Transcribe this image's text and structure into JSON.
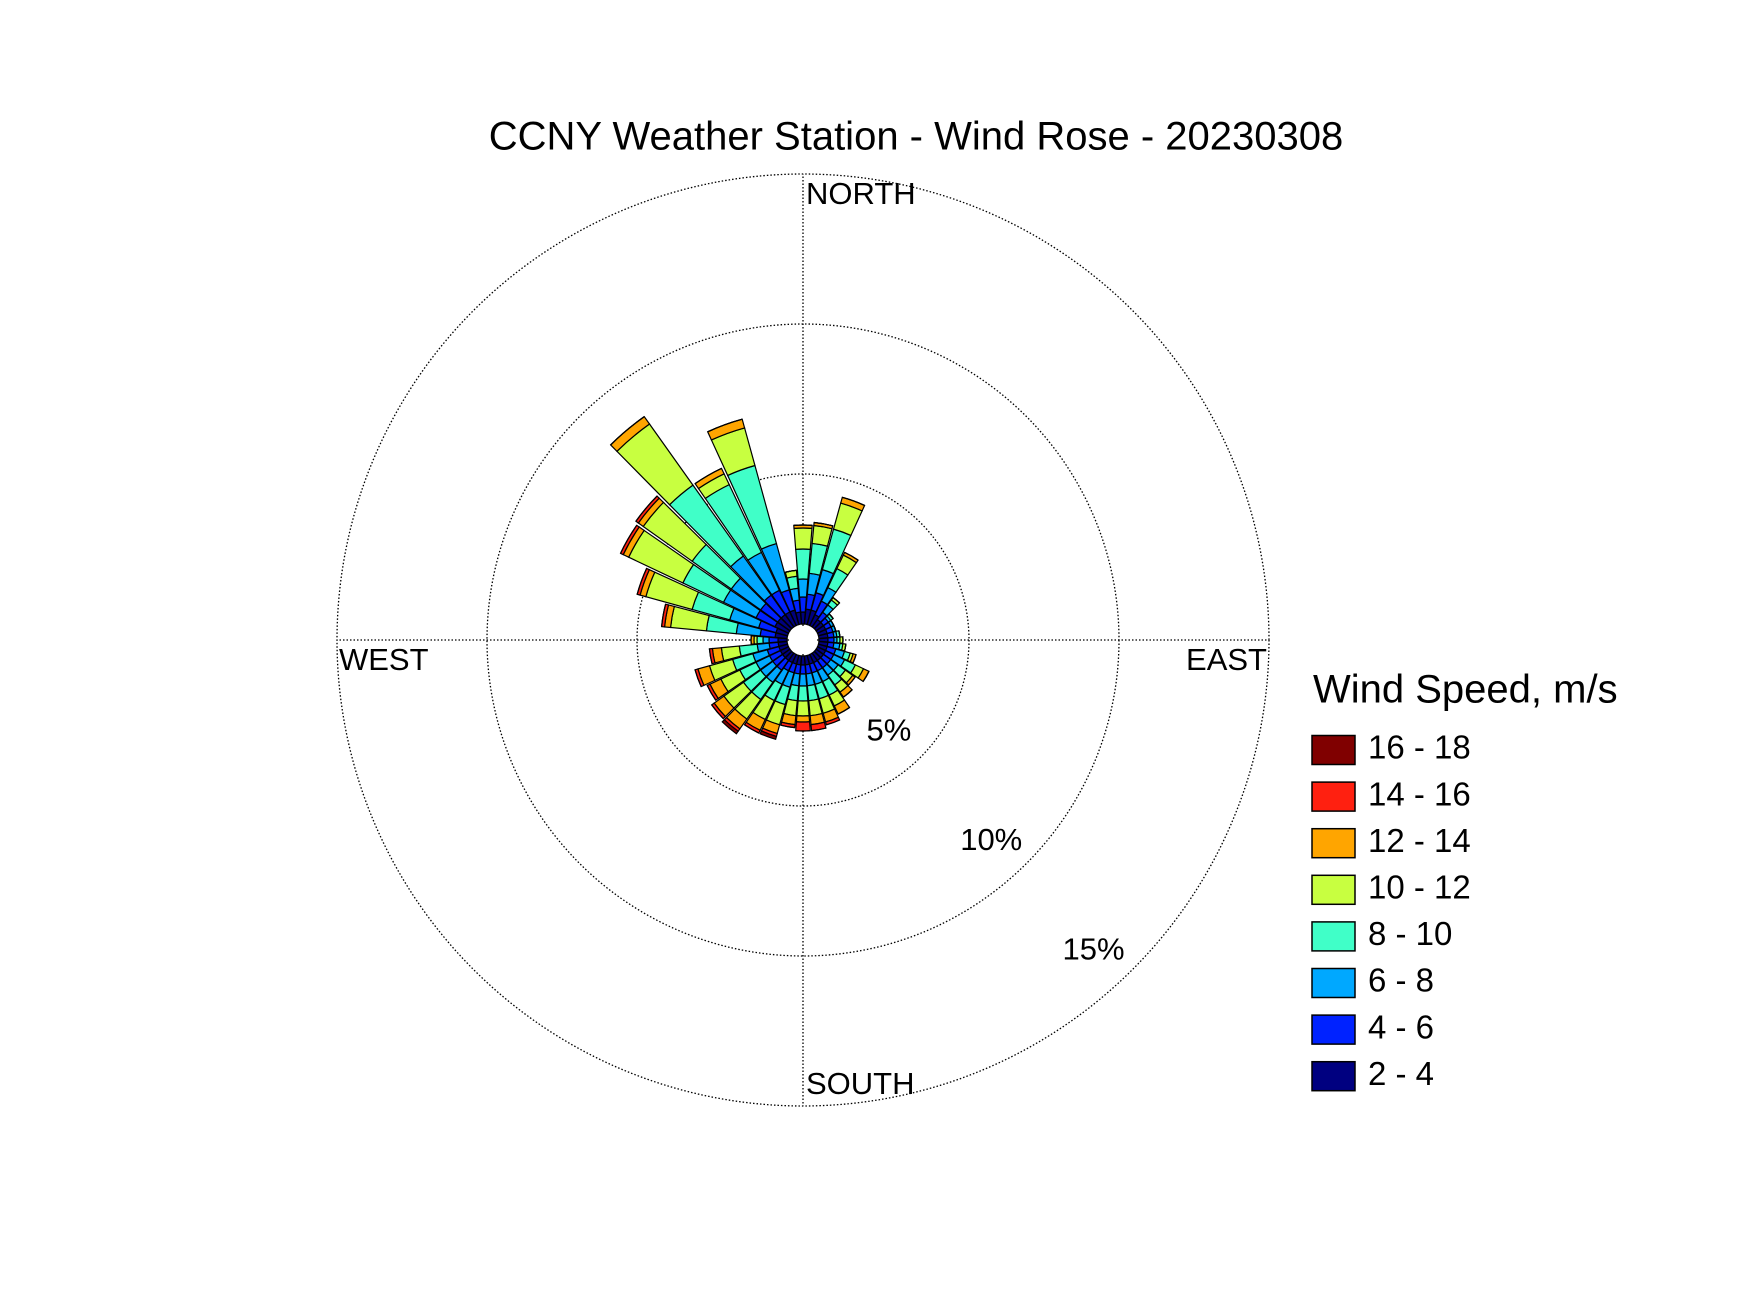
{
  "chart_data": {
    "type": "windrose",
    "title": "CCNY Weather Station - Wind Rose - 20230308",
    "legend_title": "Wind Speed, m/s",
    "x": [
      0,
      10,
      20,
      30,
      40,
      50,
      60,
      70,
      80,
      90,
      100,
      110,
      120,
      130,
      140,
      150,
      160,
      170,
      180,
      190,
      200,
      210,
      220,
      230,
      240,
      250,
      260,
      270,
      280,
      290,
      300,
      310,
      320,
      330,
      340,
      350
    ],
    "xlim": [
      0,
      360
    ],
    "xticks": [
      {
        "value": 0,
        "label": "NORTH"
      },
      {
        "value": 90,
        "label": "EAST"
      },
      {
        "value": 180,
        "label": "SOUTH"
      },
      {
        "value": 270,
        "label": "WEST"
      }
    ],
    "ylim": [
      0,
      15
    ],
    "yticks": [
      {
        "value": 5,
        "label": "5%"
      },
      {
        "value": 10,
        "label": "10%"
      },
      {
        "value": 15,
        "label": "15%"
      }
    ],
    "grid": true,
    "legend_position": "right",
    "series": [
      {
        "name": "2 - 4",
        "color": "#000080",
        "values": [
          0.4,
          0.5,
          0.5,
          0.4,
          0.3,
          0.3,
          0.3,
          0.3,
          0.3,
          0.3,
          0.3,
          0.3,
          0.3,
          0.3,
          0.3,
          0.3,
          0.3,
          0.3,
          0.3,
          0.3,
          0.3,
          0.3,
          0.3,
          0.3,
          0.3,
          0.3,
          0.3,
          0.3,
          0.4,
          0.4,
          0.5,
          0.5,
          0.5,
          0.5,
          0.5,
          0.4
        ]
      },
      {
        "name": "4 - 6",
        "color": "#0022ff",
        "values": [
          0.5,
          0.5,
          0.6,
          0.5,
          0.3,
          0.2,
          0.2,
          0.2,
          0.2,
          0.2,
          0.2,
          0.3,
          0.3,
          0.3,
          0.3,
          0.3,
          0.3,
          0.3,
          0.3,
          0.3,
          0.3,
          0.3,
          0.4,
          0.4,
          0.4,
          0.4,
          0.3,
          0.3,
          0.5,
          0.6,
          0.7,
          0.7,
          0.8,
          0.8,
          0.7,
          0.4
        ]
      },
      {
        "name": "6 - 8",
        "color": "#00a8ff",
        "values": [
          0.6,
          0.7,
          0.8,
          0.5,
          0.3,
          0.1,
          0.1,
          0.1,
          0.1,
          0.1,
          0.2,
          0.3,
          0.4,
          0.3,
          0.3,
          0.4,
          0.4,
          0.4,
          0.4,
          0.4,
          0.5,
          0.5,
          0.5,
          0.5,
          0.5,
          0.5,
          0.4,
          0.2,
          0.8,
          1.0,
          1.2,
          1.2,
          1.6,
          1.4,
          1.6,
          0.4
        ]
      },
      {
        "name": "8 - 10",
        "color": "#40ffc8",
        "values": [
          1.0,
          1.0,
          1.4,
          0.7,
          0.2,
          0.1,
          0,
          0,
          0.1,
          0.1,
          0.1,
          0.2,
          0.4,
          0.3,
          0.4,
          0.5,
          0.5,
          0.5,
          0.5,
          0.5,
          0.6,
          0.6,
          0.7,
          0.7,
          0.6,
          0.7,
          0.6,
          0.2,
          1.0,
          1.3,
          1.5,
          1.6,
          2.9,
          2.5,
          2.7,
          0.4
        ]
      },
      {
        "name": "10 - 12",
        "color": "#c8ff40",
        "values": [
          0.7,
          0.6,
          0.9,
          0.5,
          0.1,
          0,
          0,
          0,
          0,
          0.1,
          0.1,
          0.1,
          0.3,
          0.3,
          0.3,
          0.4,
          0.5,
          0.5,
          0.5,
          0.5,
          0.7,
          0.7,
          0.8,
          0.8,
          0.7,
          0.8,
          0.6,
          0.1,
          1.2,
          1.6,
          2.0,
          2.0,
          2.5,
          0.4,
          1.3,
          0.2
        ]
      },
      {
        "name": "12 - 14",
        "color": "#ffa500",
        "values": [
          0.1,
          0.1,
          0.2,
          0.1,
          0,
          0,
          0,
          0,
          0,
          0,
          0,
          0.1,
          0.2,
          0.1,
          0.2,
          0.3,
          0.3,
          0.3,
          0.2,
          0.3,
          0.3,
          0.4,
          0.4,
          0.4,
          0.4,
          0.4,
          0.3,
          0.1,
          0.2,
          0.2,
          0.2,
          0.2,
          0.3,
          0.2,
          0.3,
          0
        ]
      },
      {
        "name": "14 - 16",
        "color": "#ff2010",
        "values": [
          0,
          0,
          0,
          0,
          0,
          0,
          0,
          0,
          0,
          0,
          0,
          0,
          0,
          0,
          0,
          0,
          0.1,
          0.2,
          0.3,
          0.1,
          0.1,
          0.1,
          0.1,
          0.1,
          0.1,
          0.1,
          0.1,
          0,
          0.1,
          0.1,
          0.1,
          0.1,
          0,
          0,
          0,
          0
        ]
      },
      {
        "name": "16 - 18",
        "color": "#800000",
        "values": [
          0,
          0,
          0,
          0,
          0,
          0,
          0,
          0,
          0,
          0,
          0,
          0,
          0,
          0,
          0,
          0,
          0,
          0,
          0,
          0,
          0.1,
          0,
          0.1,
          0,
          0,
          0,
          0,
          0,
          0,
          0,
          0,
          0,
          0,
          0,
          0,
          0
        ]
      }
    ]
  }
}
